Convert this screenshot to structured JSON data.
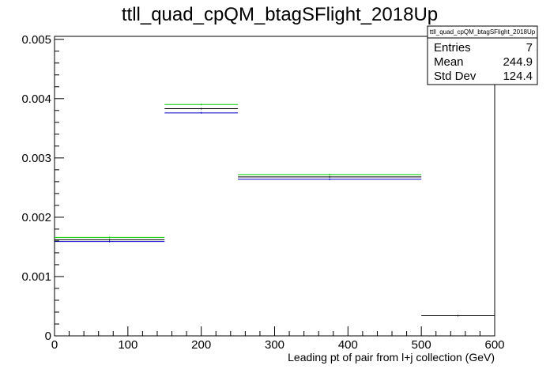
{
  "chart_data": {
    "type": "histogram",
    "title": "ttll_quad_cpQM_btagSFlight_2018Up",
    "xlabel": "Leading pt of pair from l+j collection (GeV)",
    "ylabel": "",
    "xlim": [
      0,
      600
    ],
    "ylim": [
      0,
      0.00505
    ],
    "xticks": [
      0,
      100,
      200,
      300,
      400,
      500,
      600
    ],
    "xtick_labels": [
      "0",
      "100",
      "200",
      "300",
      "400",
      "500",
      "600"
    ],
    "yticks": [
      0,
      0.001,
      0.002,
      0.003,
      0.004,
      0.005
    ],
    "ytick_labels": [
      "0",
      "0.001",
      "0.002",
      "0.003",
      "0.004",
      "0.005"
    ],
    "grid": false,
    "bin_edges": [
      0,
      150,
      250,
      500,
      600
    ],
    "series": [
      {
        "color": "#00cc00",
        "values": [
          0.00166,
          0.0039,
          0.00272,
          null
        ]
      },
      {
        "color": "#000000",
        "values": [
          0.00162,
          0.00383,
          0.00268,
          0.00034
        ]
      },
      {
        "color": "#0000cc",
        "values": [
          0.00159,
          0.00376,
          0.00264,
          null
        ]
      }
    ],
    "stats_box": {
      "title": "ttll_quad_cpQM_btagSFlight_2018Up",
      "position": "top-right",
      "rows": [
        {
          "label": "Entries",
          "value": "7"
        },
        {
          "label": "Mean",
          "value": "244.9"
        },
        {
          "label": "Std Dev",
          "value": "124.4"
        }
      ]
    }
  }
}
